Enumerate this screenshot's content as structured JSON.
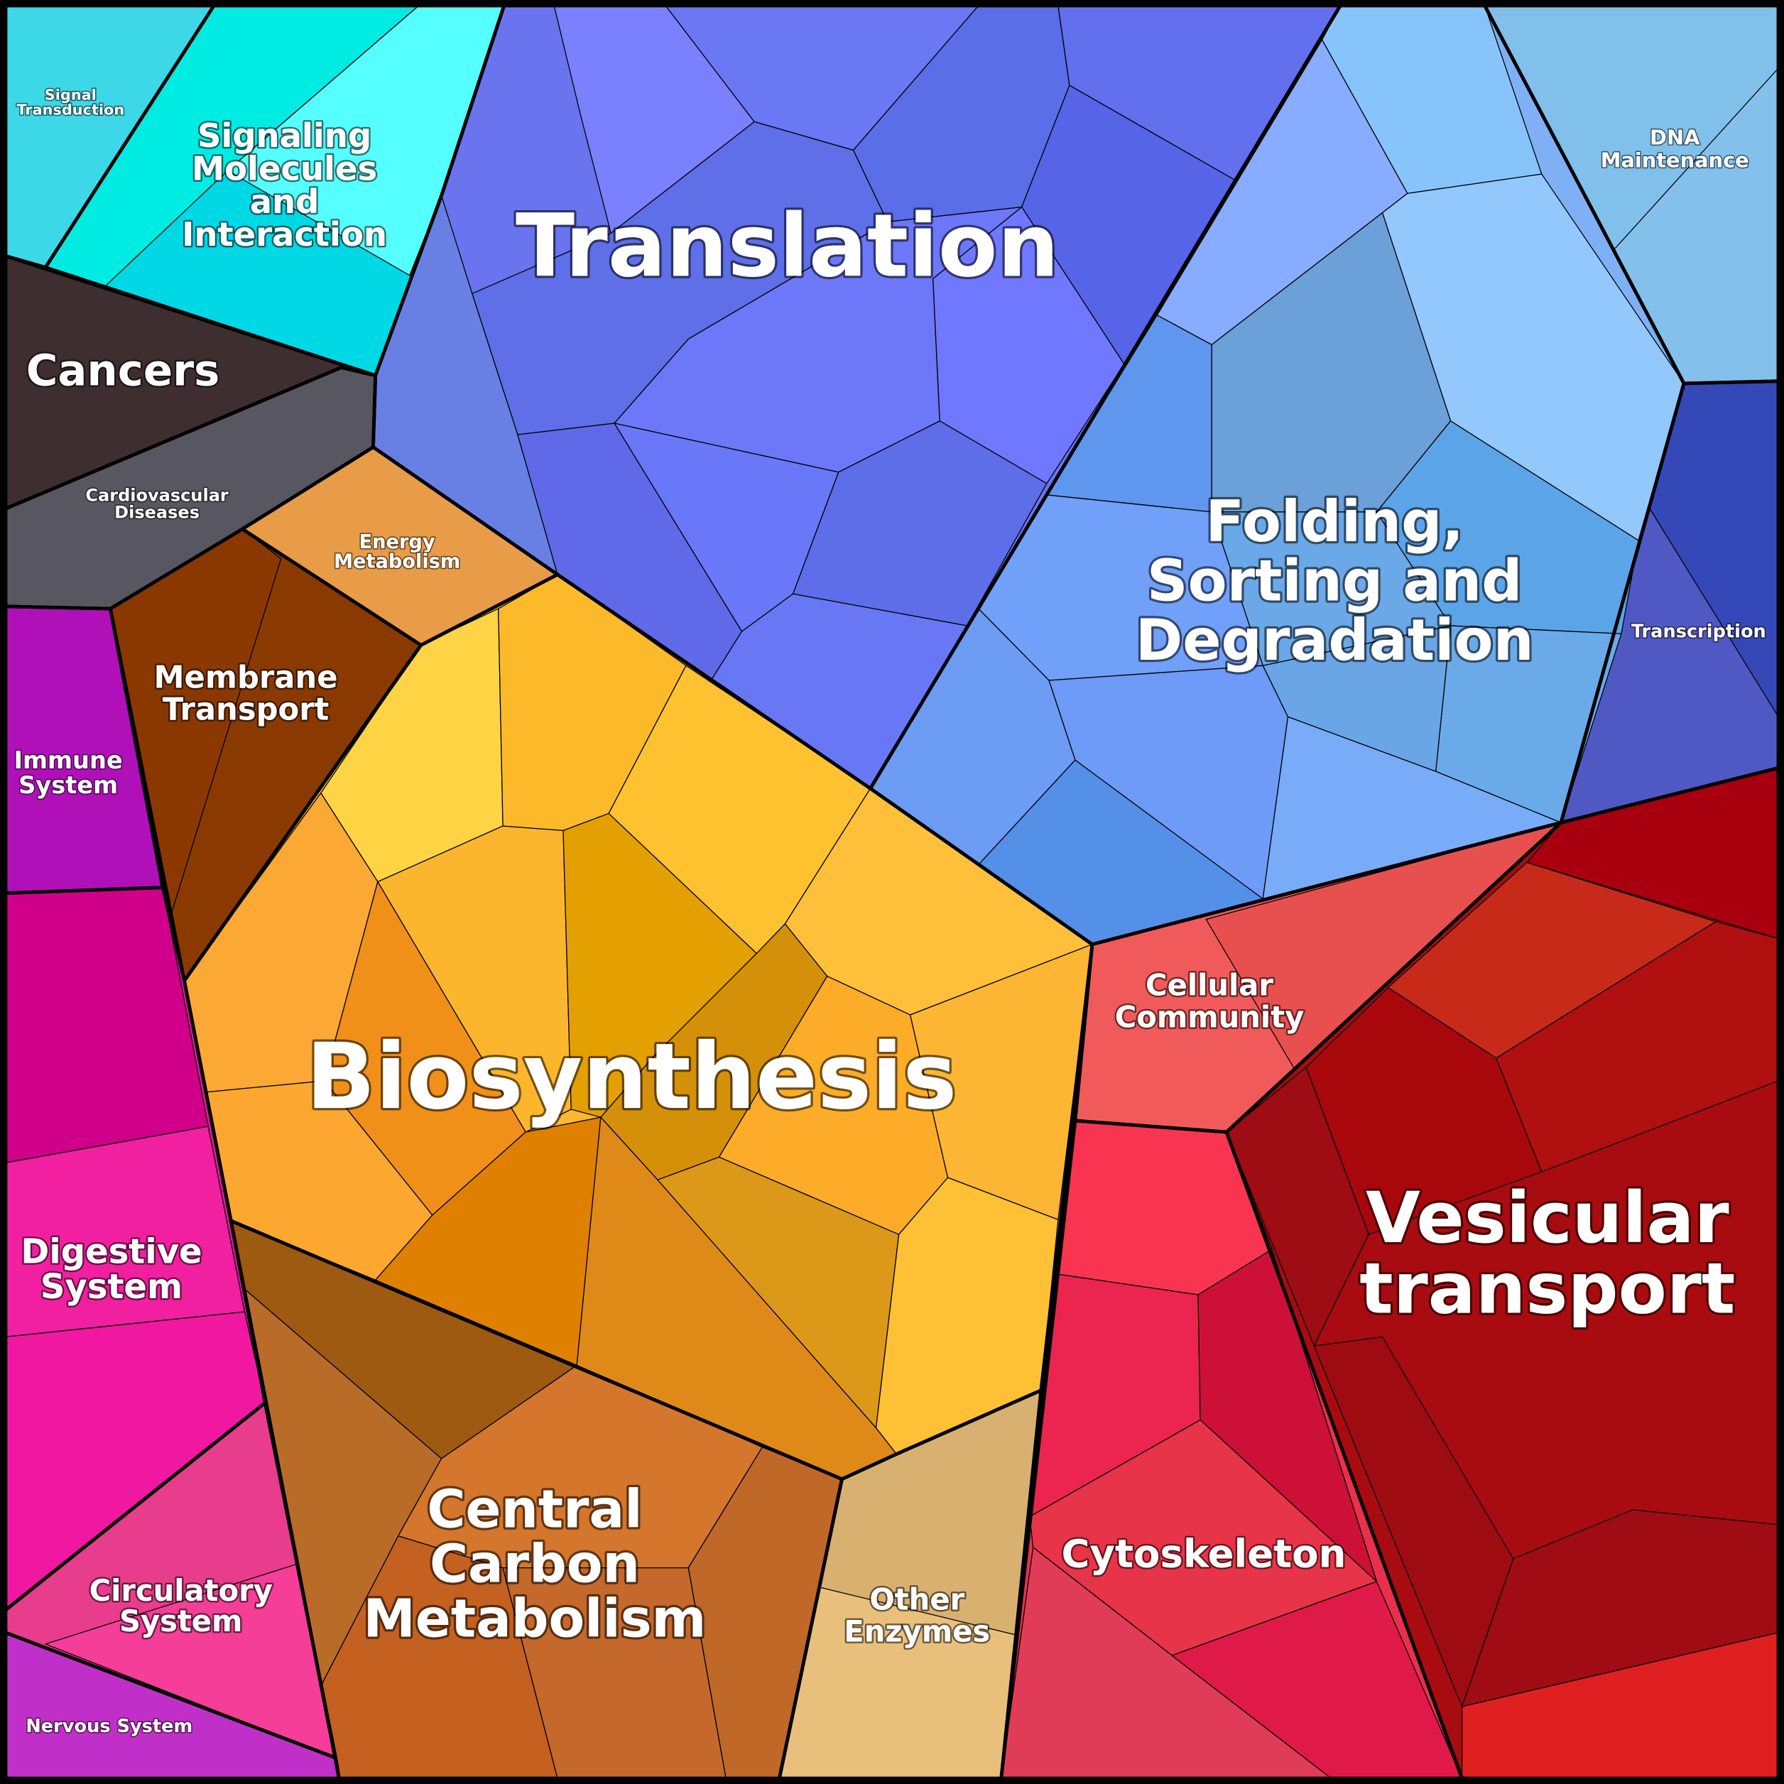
{
  "regions": [
    {
      "label": [
        "Signal",
        "Transduction"
      ]
    },
    {
      "label": [
        "Signaling",
        "Molecules",
        "and",
        "Interaction"
      ]
    },
    {
      "label": [
        "Cancers"
      ]
    },
    {
      "label": [
        "Cardiovascular",
        "Diseases"
      ]
    },
    {
      "label": [
        "Translation"
      ]
    },
    {
      "label": [
        "Energy",
        "Metabolism"
      ]
    },
    {
      "label": [
        "Membrane",
        "Transport"
      ]
    },
    {
      "label": [
        "Immune",
        "System"
      ]
    },
    {
      "label": [
        "Biosynthesis"
      ]
    },
    {
      "label": [
        "Folding,",
        "Sorting and",
        "Degradation"
      ]
    },
    {
      "label": [
        "DNA",
        "Maintenance"
      ]
    },
    {
      "label": [
        "Transcription"
      ]
    },
    {
      "label": [
        "Cellular",
        "Community"
      ]
    },
    {
      "label": [
        "Vesicular",
        "transport"
      ]
    },
    {
      "label": [
        "Digestive",
        "System"
      ]
    },
    {
      "label": [
        "Cytoskeleton"
      ]
    },
    {
      "label": [
        "Central",
        "Carbon",
        "Metabolism"
      ]
    },
    {
      "label": [
        "Other",
        "Enzymes"
      ]
    },
    {
      "label": [
        "Circulatory",
        "System"
      ]
    },
    {
      "label": [
        "Nervous System"
      ]
    }
  ]
}
